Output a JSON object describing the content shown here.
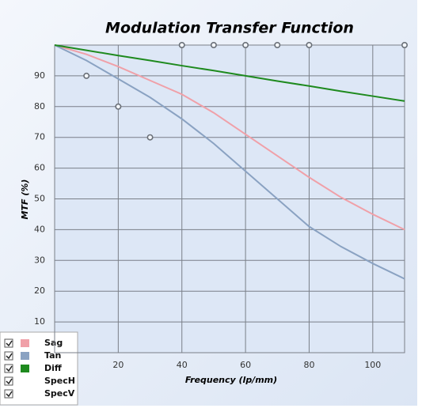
{
  "chart_data": {
    "type": "line",
    "title": "Modulation Transfer Function",
    "x_label": "Frequency (lp/mm)",
    "y_label": "MTF (%)",
    "xlim": [
      0,
      110
    ],
    "ylim": [
      0,
      100
    ],
    "xticks": [
      20,
      40,
      60,
      80,
      100
    ],
    "yticks": [
      10,
      20,
      30,
      40,
      50,
      60,
      70,
      80,
      90
    ],
    "grid": true,
    "legend": "bottom-left",
    "series": [
      {
        "name": "Sag",
        "color": "#f0a0a8",
        "style": "line",
        "x": [
          0,
          10,
          20,
          30,
          40,
          50,
          60,
          70,
          80,
          90,
          100,
          110
        ],
        "values": [
          100,
          97,
          93,
          88.5,
          84,
          78,
          71,
          64,
          57,
          50.5,
          45,
          40
        ]
      },
      {
        "name": "Tan",
        "color": "#8aa2c2",
        "style": "line",
        "x": [
          0,
          10,
          20,
          30,
          40,
          50,
          60,
          70,
          80,
          90,
          100,
          110
        ],
        "values": [
          100,
          95,
          89,
          83,
          76,
          68,
          59,
          50,
          41,
          34.5,
          29,
          24
        ]
      },
      {
        "name": "Diff",
        "color": "#1e8a1e",
        "style": "line",
        "x": [
          0,
          10,
          20,
          30,
          40,
          50,
          60,
          70,
          80,
          90,
          100,
          110
        ],
        "values": [
          100,
          98.3,
          96.6,
          95,
          93.3,
          91.7,
          90,
          88.3,
          86.7,
          85,
          83.4,
          81.8
        ]
      },
      {
        "name": "SpecH",
        "color": "#6a7078",
        "style": "markers",
        "x": [
          10,
          20,
          30
        ],
        "values": [
          90,
          80,
          70
        ]
      },
      {
        "name": "SpecV",
        "color": "#6a7078",
        "style": "markers",
        "x": [
          40,
          50,
          60,
          70,
          80,
          110
        ],
        "values": [
          100,
          100,
          100,
          100,
          100,
          100
        ]
      }
    ]
  }
}
